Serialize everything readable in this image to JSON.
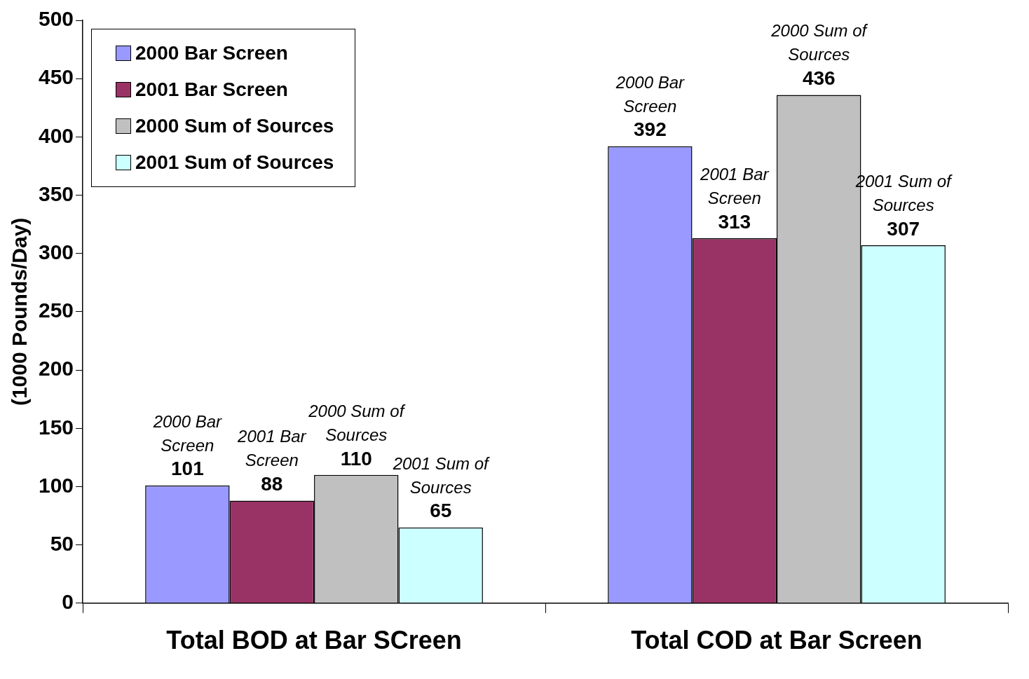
{
  "chart_data": {
    "type": "bar",
    "categories": [
      "Total BOD at Bar SCreen",
      "Total COD at Bar Screen"
    ],
    "series": [
      {
        "name": "2000 Bar Screen",
        "color": "#9999ff",
        "values": [
          101,
          392
        ]
      },
      {
        "name": "2001 Bar Screen",
        "color": "#993366",
        "values": [
          88,
          313
        ]
      },
      {
        "name": "2000 Sum of Sources",
        "color": "#c0c0c0",
        "values": [
          110,
          436
        ]
      },
      {
        "name": "2001 Sum of Sources",
        "color": "#ccffff",
        "values": [
          65,
          307
        ]
      }
    ],
    "ylabel": "(1000 Pounds/Day)",
    "ylim": [
      0,
      500
    ],
    "yticks": [
      0,
      50,
      100,
      150,
      200,
      250,
      300,
      350,
      400,
      450,
      500
    ],
    "grid": false,
    "legend": "top left",
    "data_labels": true,
    "annotations": [
      "2000 Bar Screen",
      "2001 Bar Screen",
      "2000 Sum of Sources",
      "2001 Sum of Sources",
      "2000 Bar Screen",
      "2001 Bar Screen",
      "2000 Sum of Sources",
      "2001 Sum of Sources"
    ]
  }
}
